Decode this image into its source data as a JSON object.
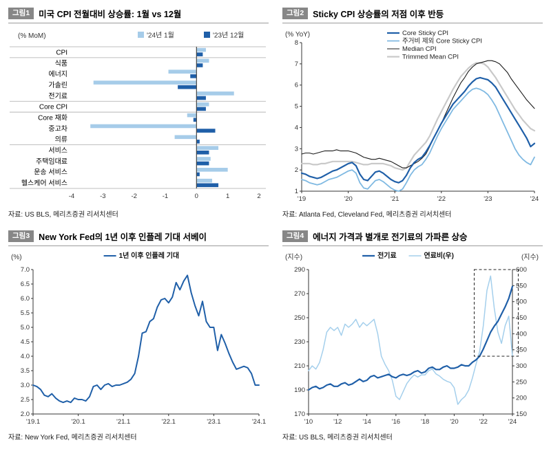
{
  "colors": {
    "dark_blue": "#1f5fa8",
    "light_blue_bar": "#a6cce9",
    "light_blue_line": "#7fb9e2",
    "light_blue_fuel": "#a4cfec",
    "gray_line": "#c9c9c9",
    "black_line": "#1a1a1a",
    "tag_background": "#878787"
  },
  "panels": [
    {
      "tag": "그림1",
      "title": "미국 CPI 전월대비 상승률: 1월 vs 12월",
      "source": "자료: US BLS, 메리츠증권 리서치센터"
    },
    {
      "tag": "그림2",
      "title": "Sticky CPI 상승률의 저점 이후 반등",
      "source": "자료: Atlanta Fed, Cleveland Fed, 메리츠증권 리서치센터"
    },
    {
      "tag": "그림3",
      "title": "New York Fed의 1년 이후 인플레 기대 서베이",
      "source": "자료: New York Fed, 메리츠증권 리서치센터"
    },
    {
      "tag": "그림4",
      "title": "에너지 가격과 별개로 전기료의 가파른 상승",
      "source": "자료: US BLS, 메리츠증권 리서치센터"
    }
  ],
  "chart_data": [
    {
      "type": "bar",
      "orientation": "horizontal",
      "unit": "(% MoM)",
      "categories": [
        "CPI",
        "식품",
        "에너지",
        "가솔린",
        "전기료",
        "Core CPI",
        "Core 재화",
        "중고차",
        "의류",
        "서비스",
        "주택임대료",
        "운송 서비스",
        "헬스케어 서비스"
      ],
      "series": [
        {
          "name": "'24년 1월",
          "color": "#a6cce9",
          "values": [
            0.3,
            0.4,
            -0.9,
            -3.3,
            1.2,
            0.4,
            -0.3,
            -3.4,
            -0.7,
            0.7,
            0.45,
            1.0,
            0.5
          ]
        },
        {
          "name": "'23년 12월",
          "color": "#1f5fa8",
          "values": [
            0.2,
            0.2,
            -0.2,
            -0.6,
            0.3,
            0.3,
            -0.1,
            0.6,
            0.1,
            0.4,
            0.4,
            0.1,
            0.7
          ]
        }
      ],
      "xlim": [
        -4,
        2
      ],
      "xticks": [
        -4,
        -3,
        -2,
        -1,
        0,
        1,
        2
      ],
      "separators": [
        0,
        1,
        5,
        6,
        9,
        13
      ]
    },
    {
      "type": "line",
      "unit_left": "(% YoY)",
      "ylim": [
        1,
        8
      ],
      "yticks": [
        "1",
        "2",
        "3",
        "4",
        "5",
        "6",
        "7",
        "8"
      ],
      "n": 61,
      "xticks": [
        {
          "label": "'19",
          "i": 0
        },
        {
          "label": "'20",
          "i": 12
        },
        {
          "label": "'21",
          "i": 24
        },
        {
          "label": "'22",
          "i": 36
        },
        {
          "label": "'23",
          "i": 48
        },
        {
          "label": "'24",
          "i": 60
        }
      ],
      "series": [
        {
          "name": "Core Sticky CPI",
          "color": "#1f5fa8",
          "width": 2.2,
          "values": [
            1.85,
            1.8,
            1.7,
            1.65,
            1.6,
            1.65,
            1.75,
            1.85,
            1.95,
            2.0,
            2.1,
            2.2,
            2.3,
            2.35,
            2.2,
            1.8,
            1.55,
            1.5,
            1.7,
            1.9,
            1.95,
            1.85,
            1.7,
            1.55,
            1.45,
            1.4,
            1.5,
            1.75,
            2.1,
            2.35,
            2.5,
            2.6,
            2.85,
            3.15,
            3.5,
            3.85,
            4.2,
            4.5,
            4.8,
            5.1,
            5.3,
            5.5,
            5.7,
            5.95,
            6.15,
            6.3,
            6.35,
            6.3,
            6.25,
            6.1,
            5.9,
            5.6,
            5.3,
            5.0,
            4.7,
            4.4,
            4.1,
            3.8,
            3.5,
            3.1,
            3.25
          ]
        },
        {
          "name": "주거비 제외 Core Sticky CPI",
          "color": "#7fb9e2",
          "width": 1.8,
          "values": [
            1.55,
            1.5,
            1.4,
            1.35,
            1.3,
            1.35,
            1.45,
            1.55,
            1.6,
            1.65,
            1.75,
            1.85,
            1.95,
            2.0,
            1.85,
            1.4,
            1.15,
            1.1,
            1.3,
            1.5,
            1.55,
            1.45,
            1.3,
            1.15,
            1.05,
            1.0,
            1.1,
            1.4,
            1.75,
            2.0,
            2.15,
            2.25,
            2.5,
            2.8,
            3.2,
            3.6,
            3.95,
            4.25,
            4.55,
            4.85,
            5.05,
            5.25,
            5.45,
            5.65,
            5.8,
            5.85,
            5.8,
            5.7,
            5.55,
            5.3,
            5.0,
            4.6,
            4.2,
            3.8,
            3.4,
            3.0,
            2.7,
            2.5,
            2.35,
            2.25,
            2.6
          ]
        },
        {
          "name": "Median CPI",
          "color": "#1a1a1a",
          "width": 1.1,
          "values": [
            2.75,
            2.8,
            2.8,
            2.75,
            2.8,
            2.85,
            2.9,
            2.9,
            2.9,
            2.95,
            2.9,
            2.9,
            2.9,
            2.85,
            2.8,
            2.7,
            2.6,
            2.55,
            2.5,
            2.5,
            2.55,
            2.5,
            2.45,
            2.4,
            2.3,
            2.2,
            2.1,
            2.1,
            2.2,
            2.3,
            2.4,
            2.55,
            2.75,
            3.1,
            3.5,
            3.85,
            4.2,
            4.6,
            5.0,
            5.4,
            5.75,
            6.1,
            6.35,
            6.65,
            6.85,
            7.0,
            7.05,
            7.1,
            7.15,
            7.15,
            7.1,
            7.0,
            6.8,
            6.6,
            6.3,
            6.05,
            5.8,
            5.55,
            5.3,
            5.1,
            4.9
          ]
        },
        {
          "name": "Trimmed Mean CPI",
          "color": "#c9c9c9",
          "width": 2.2,
          "values": [
            2.3,
            2.3,
            2.3,
            2.25,
            2.25,
            2.3,
            2.3,
            2.35,
            2.4,
            2.4,
            2.4,
            2.4,
            2.4,
            2.4,
            2.35,
            2.3,
            2.25,
            2.25,
            2.3,
            2.3,
            2.3,
            2.3,
            2.25,
            2.2,
            2.1,
            2.05,
            2.0,
            2.1,
            2.4,
            2.7,
            2.9,
            3.1,
            3.3,
            3.6,
            4.0,
            4.4,
            4.75,
            5.1,
            5.45,
            5.8,
            6.1,
            6.4,
            6.6,
            6.8,
            6.95,
            7.05,
            7.05,
            7.0,
            6.85,
            6.6,
            6.35,
            6.05,
            5.75,
            5.45,
            5.15,
            4.85,
            4.6,
            4.35,
            4.15,
            3.95,
            3.85
          ]
        }
      ]
    },
    {
      "type": "line",
      "unit_left": "(%)",
      "ylim": [
        2,
        7
      ],
      "yticks": [
        "2.0",
        "2.5",
        "3.0",
        "3.5",
        "4.0",
        "4.5",
        "5.0",
        "5.5",
        "6.0",
        "6.5",
        "7.0"
      ],
      "n": 61,
      "xticks": [
        {
          "label": "'19.1",
          "i": 0
        },
        {
          "label": "'20.1",
          "i": 12
        },
        {
          "label": "'21.1",
          "i": 24
        },
        {
          "label": "'22.1",
          "i": 36
        },
        {
          "label": "'23.1",
          "i": 48
        },
        {
          "label": "'24.1",
          "i": 60
        }
      ],
      "series": [
        {
          "name": "1년 이후 인플레 기대",
          "color": "#1f5fa8",
          "width": 2,
          "values": [
            3.0,
            2.95,
            2.85,
            2.65,
            2.6,
            2.7,
            2.55,
            2.45,
            2.4,
            2.45,
            2.4,
            2.55,
            2.5,
            2.5,
            2.45,
            2.6,
            2.95,
            3.0,
            2.85,
            3.0,
            3.05,
            2.95,
            3.0,
            3.0,
            3.05,
            3.1,
            3.2,
            3.4,
            4.0,
            4.8,
            4.85,
            5.2,
            5.3,
            5.7,
            5.95,
            6.0,
            5.85,
            6.05,
            6.55,
            6.3,
            6.6,
            6.8,
            6.2,
            5.75,
            5.4,
            5.9,
            5.2,
            5.0,
            5.0,
            4.2,
            4.75,
            4.45,
            4.1,
            3.8,
            3.55,
            3.6,
            3.65,
            3.6,
            3.4,
            3.0,
            3.0
          ]
        }
      ]
    },
    {
      "type": "line",
      "unit_left": "(지수)",
      "unit_right": "(지수)",
      "ylim": [
        170,
        290
      ],
      "yticks": [
        "170",
        "190",
        "210",
        "230",
        "250",
        "270",
        "290"
      ],
      "y2lim": [
        150,
        600
      ],
      "y2ticks": [
        "150",
        "200",
        "250",
        "300",
        "350",
        "400",
        "450",
        "500",
        "550",
        "600"
      ],
      "n": 57,
      "xticks": [
        {
          "label": "'10",
          "i": 0
        },
        {
          "label": "'12",
          "i": 8
        },
        {
          "label": "'14",
          "i": 16
        },
        {
          "label": "'16",
          "i": 24
        },
        {
          "label": "'18",
          "i": 32
        },
        {
          "label": "'20",
          "i": 40
        },
        {
          "label": "'22",
          "i": 48
        },
        {
          "label": "'24",
          "i": 56
        }
      ],
      "series": [
        {
          "name": "전기료",
          "color": "#1f5fa8",
          "width": 2.2,
          "axis": "left",
          "values": [
            190,
            192,
            193,
            191,
            192,
            194,
            195,
            193,
            193,
            195,
            196,
            194,
            195,
            197,
            199,
            197,
            198,
            201,
            202,
            200,
            201,
            202,
            203,
            201,
            200,
            202,
            203,
            202,
            203,
            205,
            206,
            204,
            205,
            208,
            209,
            207,
            207,
            209,
            210,
            208,
            208,
            209,
            211,
            210,
            210,
            213,
            215,
            218,
            224,
            231,
            238,
            243,
            247,
            253,
            259,
            266,
            276
          ]
        },
        {
          "name": "연료비(우)",
          "color": "#a4cfec",
          "width": 1.5,
          "axis": "right",
          "values": [
            285,
            300,
            290,
            310,
            350,
            405,
            420,
            410,
            420,
            395,
            430,
            420,
            430,
            445,
            420,
            435,
            425,
            435,
            445,
            400,
            330,
            305,
            285,
            255,
            205,
            195,
            220,
            245,
            260,
            272,
            265,
            272,
            272,
            285,
            290,
            275,
            268,
            258,
            252,
            248,
            232,
            180,
            195,
            205,
            225,
            262,
            305,
            345,
            425,
            535,
            580,
            480,
            405,
            370,
            425,
            455,
            330
          ]
        }
      ],
      "box": {
        "i0": 45.5,
        "i1": 57.6,
        "v0": 218,
        "v1": 290
      }
    }
  ]
}
